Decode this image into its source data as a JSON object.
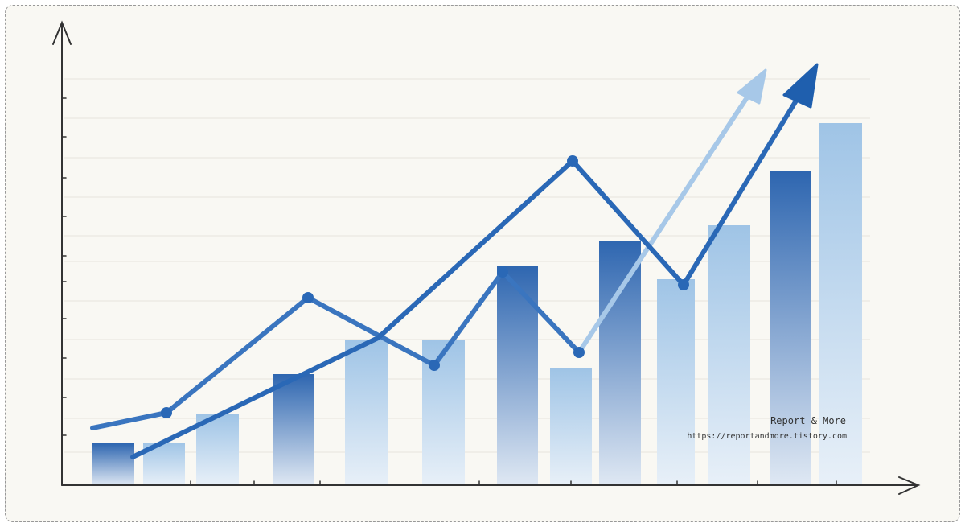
{
  "watermark": {
    "title": "Report & More",
    "url": "https://reportandmore.tistory.com"
  }
}
